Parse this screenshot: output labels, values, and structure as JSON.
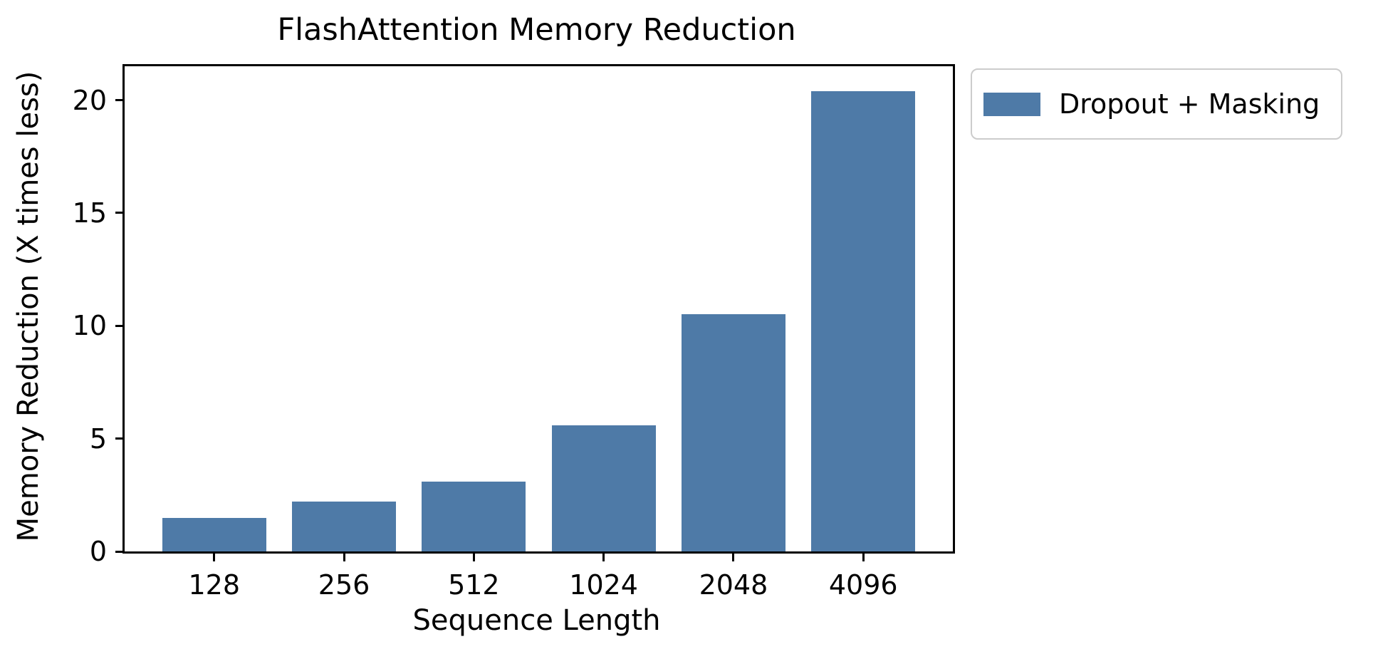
{
  "chart_data": {
    "type": "bar",
    "title": "FlashAttention Memory Reduction",
    "xlabel": "Sequence Length",
    "ylabel": "Memory Reduction (X times less)",
    "categories": [
      "128",
      "256",
      "512",
      "1024",
      "2048",
      "4096"
    ],
    "series": [
      {
        "name": "Dropout + Masking",
        "values": [
          1.5,
          2.2,
          3.1,
          5.6,
          10.5,
          20.4
        ]
      }
    ],
    "yticks": [
      0,
      5,
      10,
      15,
      20
    ],
    "ylim": [
      0,
      21.5
    ],
    "grid": false,
    "legend_position": "outside-upper-right",
    "bar_color": "#4E7AA7",
    "axis_color": "#000000",
    "background_color": "#ffffff",
    "legend_border_color": "#cccccc"
  },
  "legend": {
    "items": [
      {
        "label": "Dropout + Masking",
        "color": "#4E7AA7"
      }
    ]
  }
}
